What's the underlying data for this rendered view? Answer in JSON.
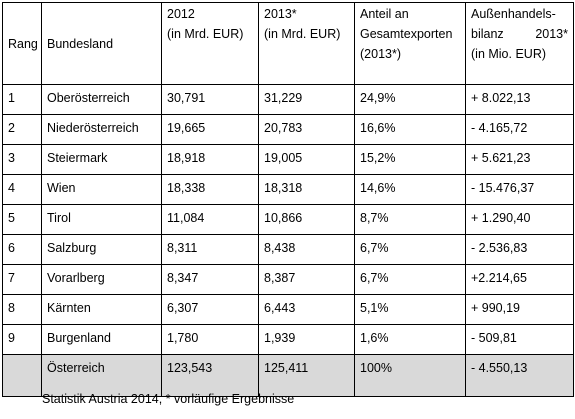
{
  "table": {
    "headers": {
      "rang": "Rang",
      "bundesland": "Bundesland",
      "y2012": [
        "2012",
        "(in Mrd. EUR)"
      ],
      "y2013": [
        "2013*",
        "(in Mrd. EUR)"
      ],
      "anteil": [
        "Anteil an",
        "Gesamtexporten",
        "(2013*)"
      ],
      "bilanz": [
        "Außenhandels-",
        "bilanz",
        "2013*",
        "(in Mio. EUR)"
      ]
    },
    "rows": [
      {
        "rang": "1",
        "land": "Oberösterreich",
        "y2012": "30,791",
        "y2013": "31,229",
        "anteil": "24,9%",
        "bilanz": "+ 8.022,13"
      },
      {
        "rang": "2",
        "land": "Niederösterreich",
        "y2012": "19,665",
        "y2013": "20,783",
        "anteil": "16,6%",
        "bilanz": "- 4.165,72"
      },
      {
        "rang": "3",
        "land": "Steiermark",
        "y2012": "18,918",
        "y2013": "19,005",
        "anteil": "15,2%",
        "bilanz": "+ 5.621,23"
      },
      {
        "rang": "4",
        "land": "Wien",
        "y2012": "18,338",
        "y2013": "18,318",
        "anteil": "14,6%",
        "bilanz": "- 15.476,37"
      },
      {
        "rang": "5",
        "land": "Tirol",
        "y2012": "11,084",
        "y2013": "10,866",
        "anteil": "8,7%",
        "bilanz": "+ 1.290,40"
      },
      {
        "rang": "6",
        "land": "Salzburg",
        "y2012": "8,311",
        "y2013": "8,438",
        "anteil": "6,7%",
        "bilanz": "- 2.536,83"
      },
      {
        "rang": "7",
        "land": "Vorarlberg",
        "y2012": "8,347",
        "y2013": "8,387",
        "anteil": "6,7%",
        "bilanz": "+2.214,65"
      },
      {
        "rang": "8",
        "land": "Kärnten",
        "y2012": "6,307",
        "y2013": "6,443",
        "anteil": "5,1%",
        "bilanz": "+ 990,19"
      },
      {
        "rang": "9",
        "land": "Burgenland",
        "y2012": "1,780",
        "y2013": "1,939",
        "anteil": "1,6%",
        "bilanz": "- 509,81"
      }
    ],
    "total": {
      "rang": "",
      "land": "Österreich",
      "y2012": "123,543",
      "y2013": "125,411",
      "anteil": "100%",
      "bilanz": "- 4.550,13"
    }
  },
  "source_note": "Statistik Austria 2014, * vorläufige Ergebnisse",
  "colors": {
    "border": "#000000",
    "total_row_background": "#d9d9d9",
    "background": "#ffffff"
  }
}
